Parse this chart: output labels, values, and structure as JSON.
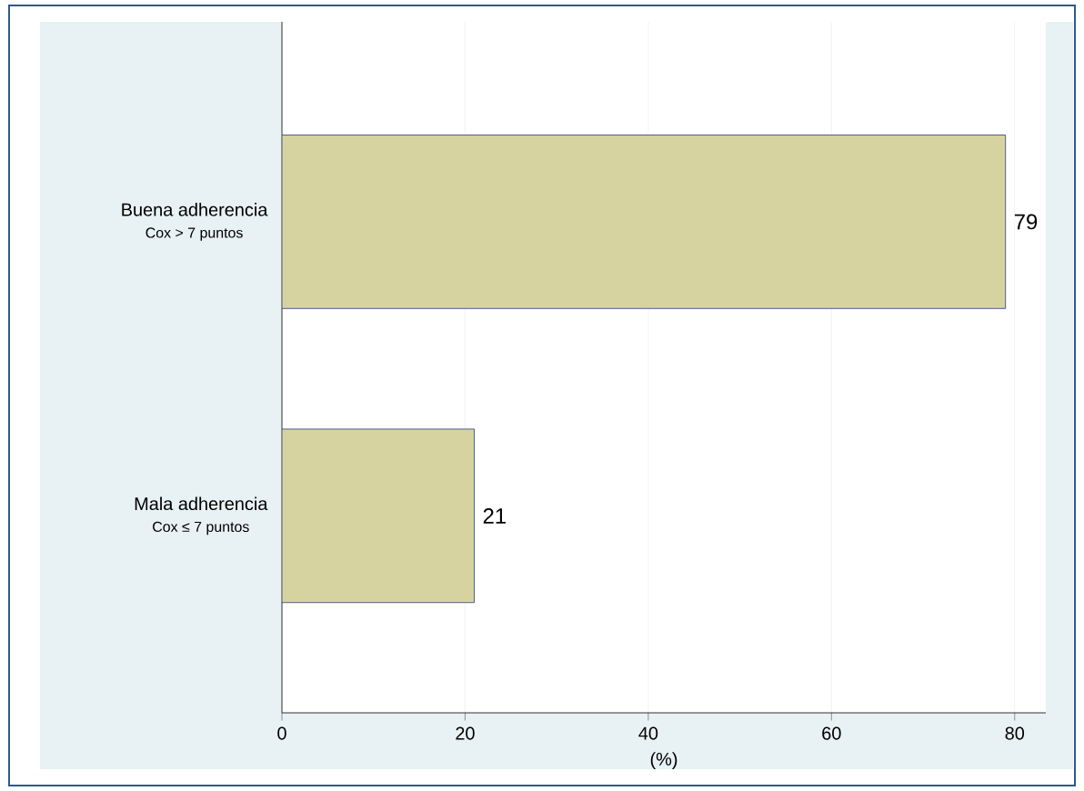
{
  "chart_data": {
    "type": "bar",
    "orientation": "horizontal",
    "xlabel": "(%)",
    "categories": [
      "Buena adherencia",
      "Mala adherencia"
    ],
    "annotations": [
      "Cox > 7 puntos",
      "Cox ≤ 7 puntos"
    ],
    "values": [
      79,
      21
    ],
    "color": "#d6d3a0",
    "data_labels": true,
    "xlim": [
      0,
      83.4
    ],
    "xticks": [
      0,
      20,
      40,
      60,
      80
    ],
    "grid": "x"
  }
}
